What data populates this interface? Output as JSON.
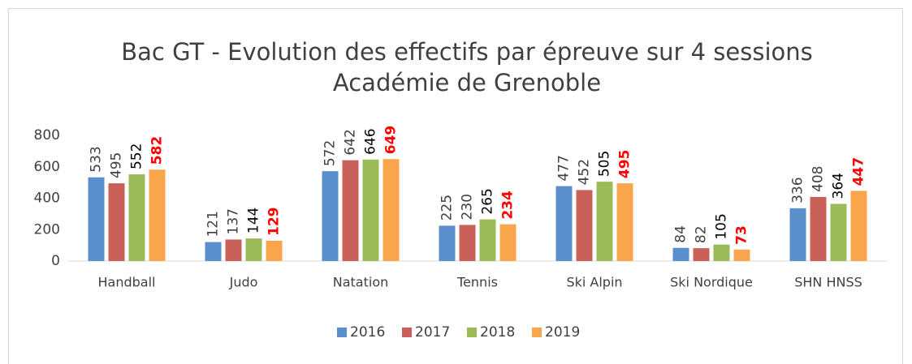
{
  "chart_data": {
    "type": "bar",
    "title": "Bac GT - Evolution des effectifs par épreuve sur 4 sessions",
    "subtitle": "Académie de Grenoble",
    "categories": [
      "Handball",
      "Judo",
      "Natation",
      "Tennis",
      "Ski Alpin",
      "Ski Nordique",
      "SHN HNSS"
    ],
    "series": [
      {
        "name": "2016",
        "color": "#5b8fcb",
        "label_color": "#404040",
        "label_bold": false,
        "values": [
          533,
          121,
          572,
          225,
          477,
          84,
          336
        ]
      },
      {
        "name": "2017",
        "color": "#c9605a",
        "label_color": "#404040",
        "label_bold": false,
        "values": [
          495,
          137,
          642,
          230,
          452,
          82,
          408
        ]
      },
      {
        "name": "2018",
        "color": "#9bbb59",
        "label_color": "#000000",
        "label_bold": false,
        "values": [
          552,
          144,
          646,
          265,
          505,
          105,
          364
        ]
      },
      {
        "name": "2019",
        "color": "#f8a54c",
        "label_color": "#ff0000",
        "label_bold": true,
        "values": [
          582,
          129,
          649,
          234,
          495,
          73,
          447
        ]
      }
    ],
    "ylim": [
      0,
      800
    ],
    "yticks": [
      0,
      200,
      400,
      600,
      800
    ],
    "grid": false,
    "legend": "bottom"
  }
}
